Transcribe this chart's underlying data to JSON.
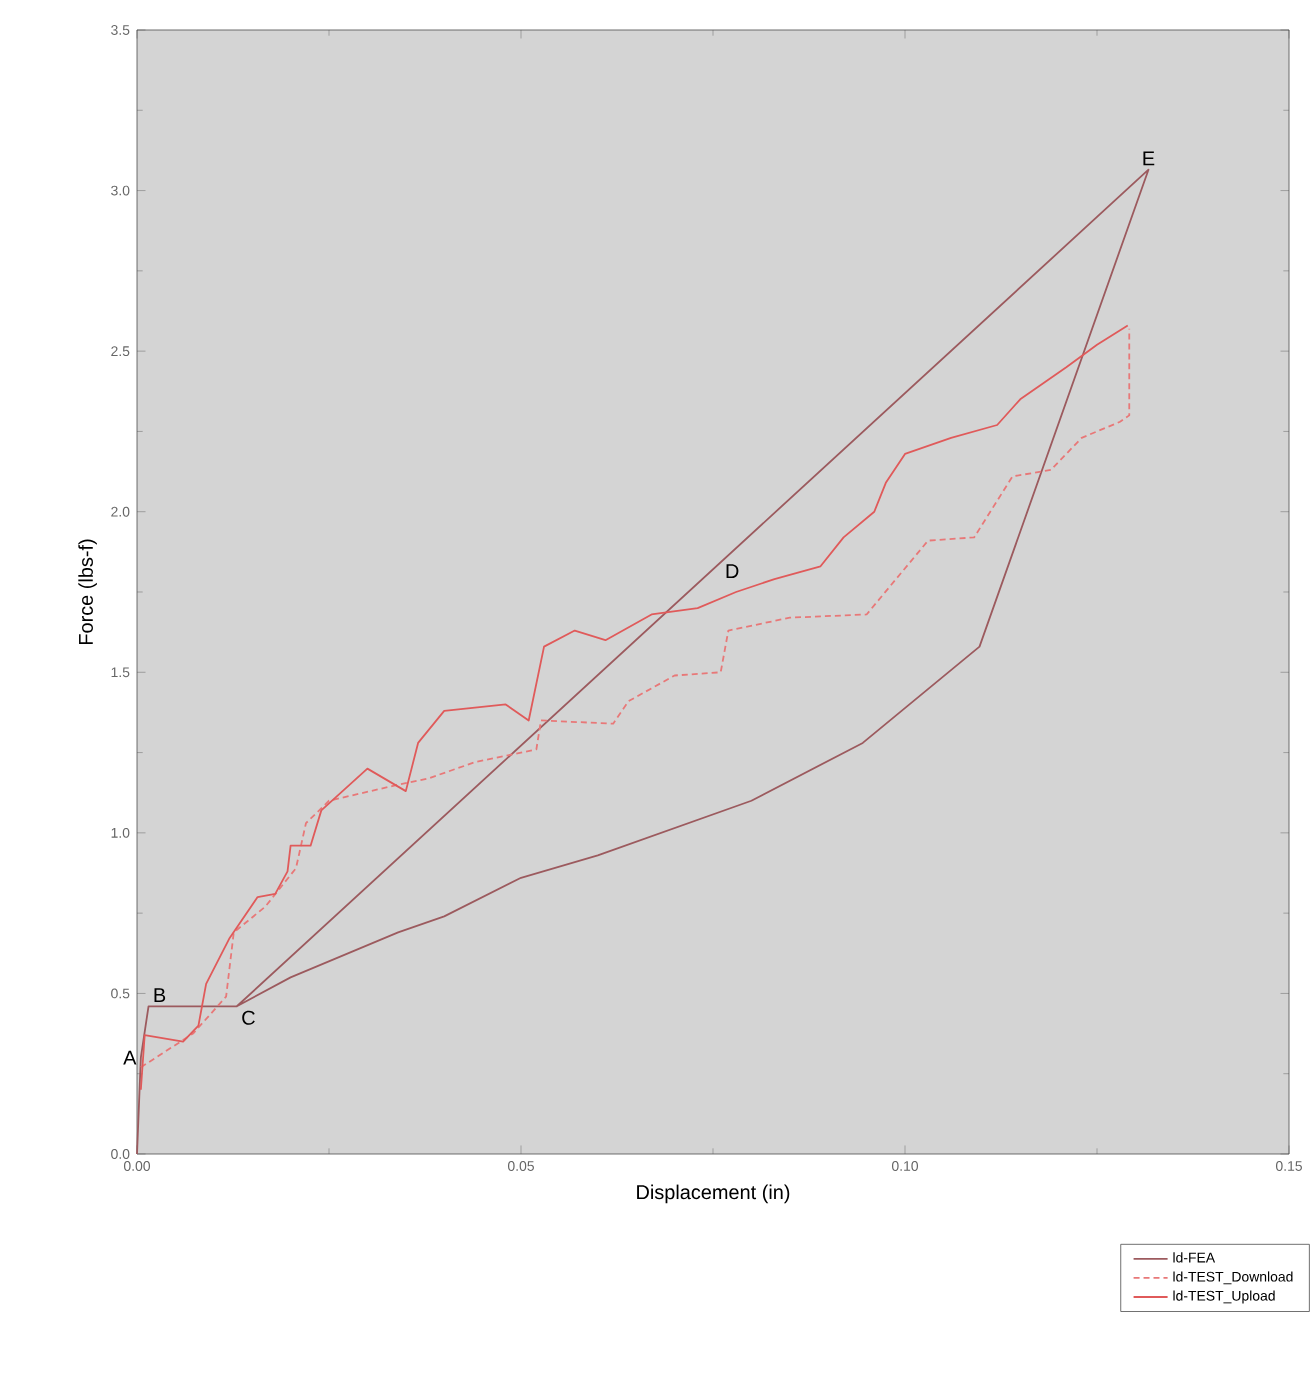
{
  "chart_data": {
    "type": "line",
    "xlabel": "Displacement (in)",
    "ylabel": "Force (lbs-f)",
    "xlim": [
      0,
      0.15
    ],
    "ylim": [
      0,
      3.5
    ],
    "xticks": [
      {
        "value": 0,
        "label": "0.00"
      },
      0.05,
      {
        "value": 0.1,
        "label": "0.10"
      },
      0.15
    ],
    "yticks": [
      {
        "value": 0,
        "label": "0.0"
      },
      0.5,
      {
        "value": 1,
        "label": "1.0"
      },
      1.5,
      {
        "value": 2,
        "label": "2.0"
      },
      2.5,
      {
        "value": 3,
        "label": "3.0"
      },
      3.5
    ],
    "grid": false,
    "legend": "bottom right",
    "marker": "none",
    "series": [
      {
        "name": "ld-FEA",
        "color": "#9c5a5e",
        "line_style": "solid",
        "x": [
          0,
          0.0005,
          0.0015,
          0.013,
          0.1317,
          0.1097,
          0.0945,
          0.08,
          0.06,
          0.05,
          0.04,
          0.034,
          0.02,
          0.013
        ],
        "values": [
          0,
          0.3,
          0.46,
          0.46,
          3.065,
          1.58,
          1.28,
          1.1,
          0.93,
          0.86,
          0.74,
          0.69,
          0.55,
          0.46
        ]
      },
      {
        "name": "ld-TEST_Download",
        "color": "#e87878",
        "line_style": "dashed",
        "x": [
          0.0005,
          0.0073,
          0.0116,
          0.0126,
          0.0167,
          0.0207,
          0.022,
          0.025,
          0.034,
          0.038,
          0.044,
          0.052,
          0.0526,
          0.062,
          0.064,
          0.07,
          0.076,
          0.077,
          0.085,
          0.095,
          0.103,
          0.109,
          0.114,
          0.119,
          0.123,
          0.128,
          0.1292,
          0.1292
        ],
        "values": [
          0.27,
          0.375,
          0.49,
          0.69,
          0.77,
          0.89,
          1.03,
          1.1,
          1.15,
          1.17,
          1.22,
          1.26,
          1.35,
          1.34,
          1.41,
          1.49,
          1.5,
          1.63,
          1.67,
          1.68,
          1.91,
          1.92,
          2.11,
          2.13,
          2.23,
          2.28,
          2.3,
          2.57
        ]
      },
      {
        "name": "ld-TEST_Upload",
        "color": "#e05a5a",
        "line_style": "solid",
        "x": [
          0.0005,
          0.001,
          0.006,
          0.008,
          0.009,
          0.012,
          0.0157,
          0.018,
          0.0196,
          0.02,
          0.0226,
          0.024,
          0.03,
          0.035,
          0.0366,
          0.04,
          0.048,
          0.051,
          0.053,
          0.057,
          0.061,
          0.067,
          0.073,
          0.078,
          0.083,
          0.089,
          0.092,
          0.096,
          0.0975,
          0.1,
          0.106,
          0.112,
          0.115,
          0.121,
          0.125,
          0.129
        ],
        "values": [
          0.2,
          0.37,
          0.35,
          0.4,
          0.53,
          0.67,
          0.8,
          0.81,
          0.88,
          0.96,
          0.96,
          1.07,
          1.2,
          1.13,
          1.28,
          1.38,
          1.4,
          1.35,
          1.58,
          1.63,
          1.6,
          1.68,
          1.7,
          1.75,
          1.79,
          1.83,
          1.92,
          2.0,
          2.09,
          2.18,
          2.23,
          2.27,
          2.35,
          2.45,
          2.52,
          2.58
        ]
      }
    ],
    "annotations": [
      {
        "text": "A",
        "x": 0.0005,
        "y": 0.3
      },
      {
        "text": "B",
        "x": 0.0015,
        "y": 0.46
      },
      {
        "text": "C",
        "x": 0.013,
        "y": 0.46
      },
      {
        "text": "D",
        "x": 0.079,
        "y": 1.78
      },
      {
        "text": "E",
        "x": 0.1317,
        "y": 3.065
      }
    ]
  }
}
